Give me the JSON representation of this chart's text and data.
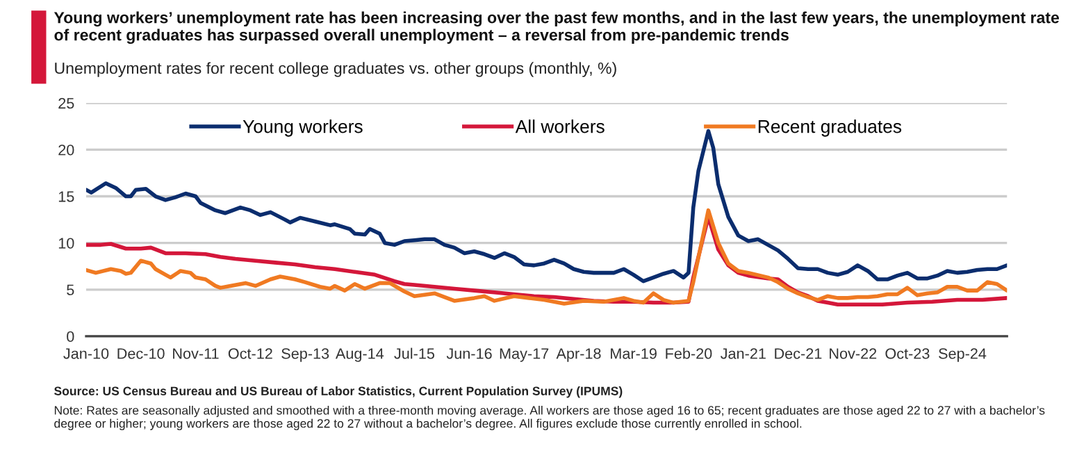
{
  "chart_data": {
    "type": "line",
    "title": "Young workers’ unemployment rate has been increasing over the past few months, and in the last few years, the unemployment rate of recent graduates has surpassed overall unemployment – a reversal from pre-pandemic trends",
    "subtitle": "Unemployment rates for recent college graduates vs. other groups (monthly, %)",
    "annotations": [
      "Source: US Census Bureau and US Bureau of Labor Statistics, Current Population Survey (IPUMS)",
      "Note: Rates are seasonally adjusted and smoothed with a three-month moving average. All workers are those aged 16 to 65; recent graduates are those aged 22 to 27 with a bachelor’s degree or higher; young workers are those aged 22 to 27 without a bachelor’s degree. All figures exclude those currently enrolled in school."
    ],
    "series": [
      {
        "name": "Young workers",
        "color": "#0b2d6e",
        "x": [
          "2010-01",
          "2010-02",
          "2010-05",
          "2010-07",
          "2010-09",
          "2010-10",
          "2010-11",
          "2011-01",
          "2011-03",
          "2011-05",
          "2011-07",
          "2011-09",
          "2011-11",
          "2011-12",
          "2012-03",
          "2012-05",
          "2012-08",
          "2012-10",
          "2012-12",
          "2013-02",
          "2013-05",
          "2013-06",
          "2013-08",
          "2013-11",
          "2014-02",
          "2014-03",
          "2014-06",
          "2014-07",
          "2014-09",
          "2014-10",
          "2014-12",
          "2015-01",
          "2015-03",
          "2015-05",
          "2015-07",
          "2015-09",
          "2015-11",
          "2016-01",
          "2016-03",
          "2016-05",
          "2016-07",
          "2016-09",
          "2016-11",
          "2017-01",
          "2017-03",
          "2017-05",
          "2017-07",
          "2017-09",
          "2017-11",
          "2018-01",
          "2018-03",
          "2018-05",
          "2018-07",
          "2018-09",
          "2018-11",
          "2019-01",
          "2019-03",
          "2019-05",
          "2019-07",
          "2019-09",
          "2019-11",
          "2020-01",
          "2020-02",
          "2020-03",
          "2020-04",
          "2020-06",
          "2020-07",
          "2020-08",
          "2020-10",
          "2020-12",
          "2021-02",
          "2021-04",
          "2021-06",
          "2021-08",
          "2021-10",
          "2021-12",
          "2022-02",
          "2022-04",
          "2022-06",
          "2022-08",
          "2022-10",
          "2022-12",
          "2023-02",
          "2023-04",
          "2023-06",
          "2023-08",
          "2023-10",
          "2023-12",
          "2024-02",
          "2024-04",
          "2024-06",
          "2024-08",
          "2024-10",
          "2024-12",
          "2025-02",
          "2025-04",
          "2025-06"
        ],
        "values": [
          15.7,
          15.4,
          16.4,
          15.9,
          15.0,
          15.0,
          15.7,
          15.8,
          15.0,
          14.6,
          14.9,
          15.3,
          15.0,
          14.3,
          13.5,
          13.2,
          13.8,
          13.5,
          13.0,
          13.3,
          12.5,
          12.2,
          12.7,
          12.3,
          11.9,
          12.0,
          11.5,
          11.0,
          10.9,
          11.5,
          11.0,
          10.0,
          9.8,
          10.2,
          10.3,
          10.4,
          10.4,
          9.8,
          9.5,
          8.9,
          9.1,
          8.8,
          8.4,
          8.9,
          8.5,
          7.7,
          7.6,
          7.8,
          8.2,
          7.8,
          7.2,
          6.9,
          6.8,
          6.8,
          6.8,
          7.2,
          6.6,
          5.9,
          6.3,
          6.7,
          7.0,
          6.3,
          6.8,
          13.8,
          17.7,
          22.0,
          20.2,
          16.3,
          12.8,
          10.8,
          10.2,
          10.4,
          9.8,
          9.2,
          8.3,
          7.3,
          7.2,
          7.2,
          6.8,
          6.6,
          6.9,
          7.6,
          7.0,
          6.1,
          6.1,
          6.5,
          6.8,
          6.2,
          6.2,
          6.5,
          7.0,
          6.8,
          6.9,
          7.1,
          7.2,
          7.2,
          7.6
        ]
      },
      {
        "name": "All workers",
        "color": "#d4173a",
        "x": [
          "2010-01",
          "2010-04",
          "2010-06",
          "2010-09",
          "2010-12",
          "2011-02",
          "2011-05",
          "2011-09",
          "2012-01",
          "2012-04",
          "2012-07",
          "2012-11",
          "2013-03",
          "2013-07",
          "2013-11",
          "2014-03",
          "2014-07",
          "2014-11",
          "2015-03",
          "2015-05",
          "2015-07",
          "2015-11",
          "2016-03",
          "2016-07",
          "2016-11",
          "2017-03",
          "2017-07",
          "2017-11",
          "2018-03",
          "2018-07",
          "2018-11",
          "2019-03",
          "2019-07",
          "2019-11",
          "2020-02",
          "2020-03",
          "2020-06",
          "2020-08",
          "2020-10",
          "2020-12",
          "2021-02",
          "2021-06",
          "2021-08",
          "2021-10",
          "2021-12",
          "2022-02",
          "2022-04",
          "2022-06",
          "2022-08",
          "2022-12",
          "2023-05",
          "2023-10",
          "2024-03",
          "2024-08",
          "2025-01",
          "2025-06"
        ],
        "values": [
          9.8,
          9.8,
          9.9,
          9.4,
          9.4,
          9.5,
          8.9,
          8.9,
          8.8,
          8.5,
          8.3,
          8.1,
          7.9,
          7.7,
          7.4,
          7.2,
          6.9,
          6.6,
          5.9,
          5.6,
          5.5,
          5.3,
          5.1,
          4.9,
          4.7,
          4.5,
          4.3,
          4.2,
          4.0,
          3.8,
          3.7,
          3.7,
          3.6,
          3.6,
          3.7,
          6.3,
          12.8,
          9.3,
          7.6,
          6.8,
          6.5,
          6.2,
          6.1,
          5.3,
          4.7,
          4.3,
          3.8,
          3.6,
          3.4,
          3.4,
          3.4,
          3.6,
          3.7,
          3.9,
          3.9,
          4.1
        ]
      },
      {
        "name": "Recent graduates",
        "color": "#f07a22",
        "x": [
          "2010-01",
          "2010-03",
          "2010-06",
          "2010-08",
          "2010-09",
          "2010-10",
          "2010-12",
          "2011-02",
          "2011-03",
          "2011-05",
          "2011-06",
          "2011-08",
          "2011-10",
          "2011-11",
          "2012-01",
          "2012-03",
          "2012-04",
          "2012-06",
          "2012-09",
          "2012-11",
          "2013-02",
          "2013-04",
          "2013-07",
          "2013-09",
          "2013-12",
          "2014-02",
          "2014-03",
          "2014-05",
          "2014-07",
          "2014-09",
          "2014-12",
          "2015-02",
          "2015-05",
          "2015-07",
          "2015-11",
          "2016-03",
          "2016-07",
          "2016-09",
          "2016-11",
          "2017-03",
          "2017-06",
          "2017-09",
          "2018-01",
          "2018-05",
          "2018-09",
          "2019-01",
          "2019-03",
          "2019-05",
          "2019-07",
          "2019-09",
          "2019-11",
          "2020-02",
          "2020-03",
          "2020-06",
          "2020-08",
          "2020-10",
          "2020-12",
          "2021-02",
          "2021-06",
          "2021-08",
          "2021-10",
          "2021-12",
          "2022-02",
          "2022-04",
          "2022-06",
          "2022-08",
          "2022-10",
          "2022-12",
          "2023-02",
          "2023-04",
          "2023-06",
          "2023-08",
          "2023-10",
          "2023-12",
          "2024-02",
          "2024-04",
          "2024-06",
          "2024-08",
          "2024-10",
          "2024-12",
          "2025-02",
          "2025-04",
          "2025-06"
        ],
        "values": [
          7.1,
          6.8,
          7.2,
          7.0,
          6.7,
          6.8,
          8.1,
          7.8,
          7.2,
          6.6,
          6.3,
          7.0,
          6.8,
          6.3,
          6.1,
          5.4,
          5.2,
          5.4,
          5.7,
          5.4,
          6.1,
          6.4,
          6.1,
          5.8,
          5.3,
          5.1,
          5.4,
          4.9,
          5.6,
          5.1,
          5.7,
          5.7,
          4.8,
          4.3,
          4.6,
          3.8,
          4.1,
          4.3,
          3.8,
          4.3,
          4.1,
          3.9,
          3.5,
          3.8,
          3.7,
          4.1,
          3.8,
          3.6,
          4.6,
          3.9,
          3.6,
          3.8,
          5.8,
          13.5,
          10.0,
          7.8,
          7.0,
          6.8,
          6.3,
          5.8,
          5.1,
          4.6,
          4.2,
          3.9,
          4.3,
          4.1,
          4.1,
          4.2,
          4.2,
          4.3,
          4.5,
          4.5,
          5.2,
          4.4,
          4.6,
          4.7,
          5.3,
          5.3,
          4.9,
          4.9,
          5.8,
          5.6,
          4.9
        ]
      }
    ],
    "xlim": [
      "2010-01",
      "2025-06"
    ],
    "xticks": [
      {
        "value": "2010-01",
        "label": "Jan-10"
      },
      {
        "value": "2010-12",
        "label": "Dec-10"
      },
      {
        "value": "2011-11",
        "label": "Nov-11"
      },
      {
        "value": "2012-10",
        "label": "Oct-12"
      },
      {
        "value": "2013-09",
        "label": "Sep-13"
      },
      {
        "value": "2014-08",
        "label": "Aug-14"
      },
      {
        "value": "2015-07",
        "label": "Jul-15"
      },
      {
        "value": "2016-06",
        "label": "Jun-16"
      },
      {
        "value": "2017-05",
        "label": "May-17"
      },
      {
        "value": "2018-04",
        "label": "Apr-18"
      },
      {
        "value": "2019-03",
        "label": "Mar-19"
      },
      {
        "value": "2020-02",
        "label": "Feb-20"
      },
      {
        "value": "2021-01",
        "label": "Jan-21"
      },
      {
        "value": "2021-12",
        "label": "Dec-21"
      },
      {
        "value": "2022-11",
        "label": "Nov-22"
      },
      {
        "value": "2023-10",
        "label": "Oct-23"
      },
      {
        "value": "2024-09",
        "label": "Sep-24"
      }
    ],
    "ylim": [
      0,
      25
    ],
    "yticks": [
      0,
      5,
      10,
      15,
      20,
      25
    ],
    "grid": "y",
    "legend": "top",
    "marker": "none",
    "line_style": "solid"
  }
}
